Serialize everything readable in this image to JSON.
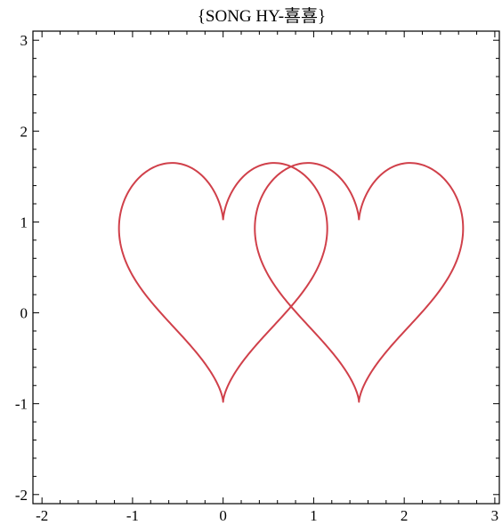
{
  "chart_data": {
    "type": "line",
    "title": "{SONG HY-喜喜}",
    "xlabel": "",
    "ylabel": "",
    "xlim": [
      -2.1,
      3.05
    ],
    "ylim": [
      -2.1,
      3.1
    ],
    "x_ticks": [
      -2,
      -1,
      0,
      1,
      2,
      3
    ],
    "y_ticks": [
      -2,
      -1,
      0,
      1,
      2,
      3
    ],
    "grid": false,
    "legend": "none",
    "line_color": "#d0404a",
    "series": [
      {
        "curve": "heart",
        "center": [
          0,
          0
        ],
        "top_cusp": [
          0,
          1.02
        ],
        "bottom_tip": [
          0,
          -0.98
        ],
        "x_range": [
          -1.15,
          1.15
        ],
        "y_max": 1.23
      },
      {
        "curve": "heart",
        "center": [
          1.5,
          0
        ],
        "top_cusp": [
          1.5,
          1.02
        ],
        "bottom_tip": [
          1.5,
          -0.98
        ],
        "x_range": [
          0.35,
          2.65
        ],
        "y_max": 1.23
      }
    ]
  }
}
